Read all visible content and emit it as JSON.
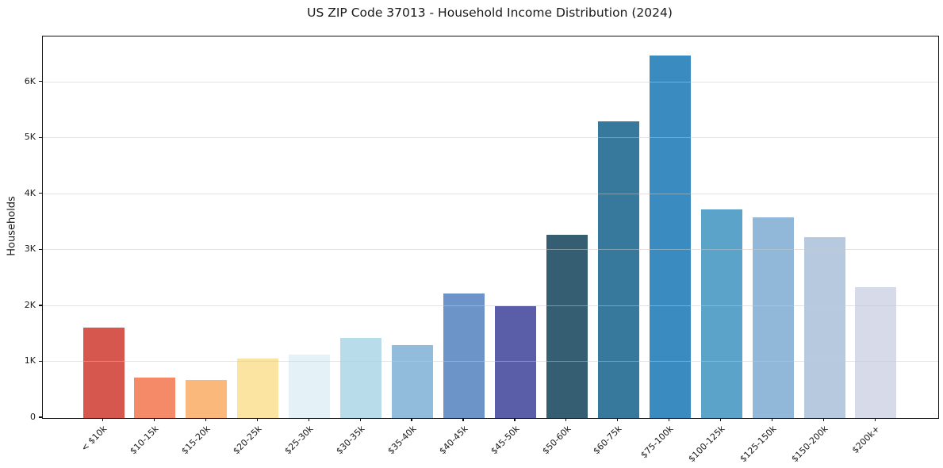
{
  "chart_data": {
    "type": "bar",
    "title": "US ZIP Code 37013 - Household Income Distribution (2024)",
    "xlabel": "",
    "ylabel": "Households",
    "categories": [
      "< $10k",
      "$10-15k",
      "$15-20k",
      "$20-25k",
      "$25-30k",
      "$30-35k",
      "$35-40k",
      "$40-45k",
      "$45-50k",
      "$50-60k",
      "$60-75k",
      "$75-100k",
      "$100-125k",
      "$125-150k",
      "$150-200k",
      "$200k+"
    ],
    "values": [
      1620,
      720,
      680,
      1060,
      1140,
      1430,
      1310,
      2230,
      2000,
      3270,
      5300,
      6480,
      3730,
      3590,
      3240,
      2340
    ],
    "bar_colors": [
      "#d6574e",
      "#f58a68",
      "#fab87b",
      "#fbe3a1",
      "#e4f1f6",
      "#b8dcea",
      "#92bcdb",
      "#6c94c8",
      "#5a5da8",
      "#365e73",
      "#37789d",
      "#398bc0",
      "#5ba3c9",
      "#91b8d9",
      "#b7c9de",
      "#d7dae8"
    ],
    "ylim": [
      0,
      6820
    ],
    "yticks": [
      0,
      1000,
      2000,
      3000,
      4000,
      5000,
      6000
    ],
    "ytick_labels": [
      "0",
      "1K",
      "2K",
      "3K",
      "4K",
      "5K",
      "6K"
    ],
    "x_tick_label_rotation_deg": 45,
    "grid": "horizontal gridlines at 1K intervals, light gray, drawn over bars",
    "legend": "none",
    "text_color": "#1a1a1a",
    "background_color": "#ffffff"
  }
}
